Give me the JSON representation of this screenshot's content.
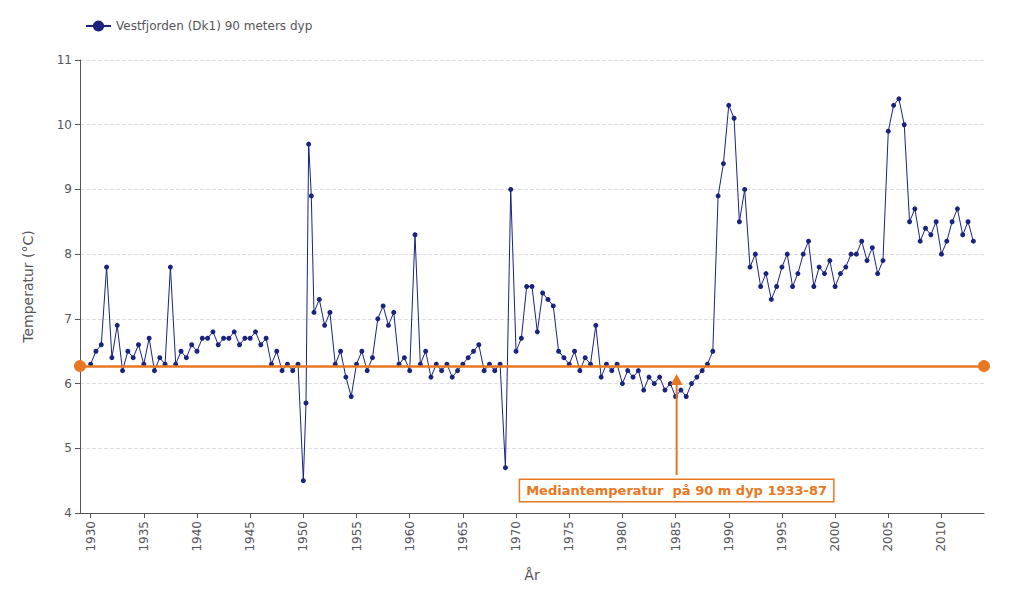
{
  "chart_data": {
    "type": "line",
    "xlabel": "År",
    "ylabel": "Temperatur (°C)",
    "x": [
      1930,
      1930.5,
      1931,
      1931.5,
      1932,
      1932.5,
      1933,
      1933.5,
      1934,
      1934.5,
      1935,
      1935.5,
      1936,
      1936.5,
      1937,
      1937.5,
      1938,
      1938.5,
      1939,
      1939.5,
      1940,
      1940.5,
      1941,
      1941.5,
      1942,
      1942.5,
      1943,
      1943.5,
      1944,
      1944.5,
      1945,
      1945.5,
      1946,
      1946.5,
      1947,
      1947.5,
      1948,
      1948.5,
      1949,
      1949.5,
      1950,
      1950.25,
      1950.5,
      1950.75,
      1951,
      1951.5,
      1952,
      1952.5,
      1953,
      1953.5,
      1954,
      1954.5,
      1955,
      1955.5,
      1956,
      1956.5,
      1957,
      1957.5,
      1958,
      1958.5,
      1959,
      1959.5,
      1960,
      1960.5,
      1961,
      1961.5,
      1962,
      1962.5,
      1963,
      1963.5,
      1964,
      1964.5,
      1965,
      1965.5,
      1966,
      1966.5,
      1967,
      1967.5,
      1968,
      1968.5,
      1969,
      1969.5,
      1970,
      1970.5,
      1971,
      1971.5,
      1972,
      1972.5,
      1973,
      1973.5,
      1974,
      1974.5,
      1975,
      1975.5,
      1976,
      1976.5,
      1977,
      1977.5,
      1978,
      1978.5,
      1979,
      1979.5,
      1980,
      1980.5,
      1981,
      1981.5,
      1982,
      1982.5,
      1983,
      1983.5,
      1984,
      1984.5,
      1985,
      1985.5,
      1986,
      1986.5,
      1987,
      1987.5,
      1988,
      1988.5,
      1989,
      1989.5,
      1990,
      1990.5,
      1991,
      1991.5,
      1992,
      1992.5,
      1993,
      1993.5,
      1994,
      1994.5,
      1995,
      1995.5,
      1996,
      1996.5,
      1997,
      1997.5,
      1998,
      1998.5,
      1999,
      1999.5,
      2000,
      2000.5,
      2001,
      2001.5,
      2002,
      2002.5,
      2003,
      2003.5,
      2004,
      2004.5,
      2005,
      2005.5,
      2006,
      2006.5,
      2007,
      2007.5,
      2008,
      2008.5,
      2009,
      2009.5,
      2010,
      2010.5,
      2011,
      2011.5,
      2012,
      2012.5,
      2013
    ],
    "series": [
      {
        "name": "Vestfjorden (Dk1) 90 meters dyp",
        "color": "#1a237e",
        "marker": "circle",
        "values": [
          6.3,
          6.5,
          6.6,
          7.8,
          6.4,
          6.9,
          6.2,
          6.5,
          6.4,
          6.6,
          6.3,
          6.7,
          6.2,
          6.4,
          6.3,
          7.8,
          6.3,
          6.5,
          6.4,
          6.6,
          6.5,
          6.7,
          6.7,
          6.8,
          6.6,
          6.7,
          6.7,
          6.8,
          6.6,
          6.7,
          6.7,
          6.8,
          6.6,
          6.7,
          6.3,
          6.5,
          6.2,
          6.3,
          6.2,
          6.3,
          4.5,
          5.7,
          9.7,
          8.9,
          7.1,
          7.3,
          6.9,
          7.1,
          6.3,
          6.5,
          6.1,
          5.8,
          6.3,
          6.5,
          6.2,
          6.4,
          7.0,
          7.2,
          6.9,
          7.1,
          6.3,
          6.4,
          6.2,
          8.3,
          6.3,
          6.5,
          6.1,
          6.3,
          6.2,
          6.3,
          6.1,
          6.2,
          6.3,
          6.4,
          6.5,
          6.6,
          6.2,
          6.3,
          6.2,
          6.3,
          4.7,
          9.0,
          6.5,
          6.7,
          7.5,
          7.5,
          6.8,
          7.4,
          7.3,
          7.2,
          6.5,
          6.4,
          6.3,
          6.5,
          6.2,
          6.4,
          6.3,
          6.9,
          6.1,
          6.3,
          6.2,
          6.3,
          6.0,
          6.2,
          6.1,
          6.2,
          5.9,
          6.1,
          6.0,
          6.1,
          5.9,
          6.0,
          5.8,
          5.9,
          5.8,
          6.0,
          6.1,
          6.2,
          6.3,
          6.5,
          8.9,
          9.4,
          10.3,
          10.1,
          8.5,
          9.0,
          7.8,
          8.0,
          7.5,
          7.7,
          7.3,
          7.5,
          7.8,
          8.0,
          7.5,
          7.7,
          8.0,
          8.2,
          7.5,
          7.8,
          7.7,
          7.9,
          7.5,
          7.7,
          7.8,
          8.0,
          8.0,
          8.2,
          7.9,
          8.1,
          7.7,
          7.9,
          9.9,
          10.3,
          10.4,
          10.0,
          8.5,
          8.7,
          8.2,
          8.4,
          8.3,
          8.5,
          8.0,
          8.2,
          8.5,
          8.7,
          8.3,
          8.5,
          8.2
        ]
      }
    ],
    "median": {
      "value": 6.27,
      "label": "Mediantemperatur  på 90 m dyp 1933-87",
      "color": "#e87722"
    },
    "xlim": [
      1929,
      2014
    ],
    "xticks": [
      1930,
      1935,
      1940,
      1945,
      1950,
      1955,
      1960,
      1965,
      1970,
      1975,
      1980,
      1985,
      1990,
      1995,
      2000,
      2005,
      2010
    ],
    "ylim": [
      4,
      11
    ],
    "yticks": [
      4,
      5,
      6,
      7,
      8,
      9,
      10,
      11
    ],
    "grid": "y",
    "legend": "upper left"
  }
}
